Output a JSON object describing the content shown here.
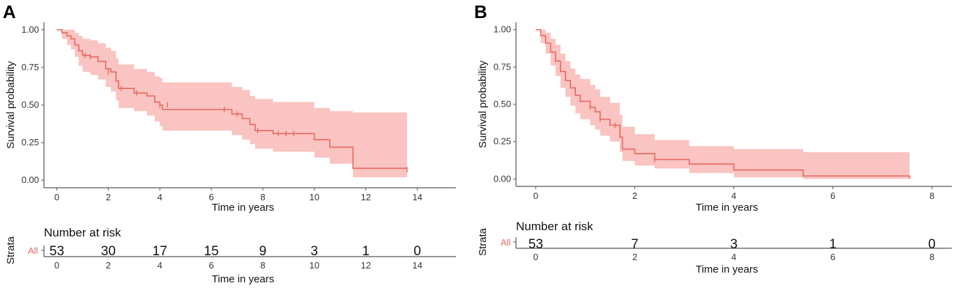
{
  "colors": {
    "curve": "#e8665f",
    "band": "#f9c4c1",
    "axis": "#555555",
    "text": "#111111"
  },
  "chart_data": [
    {
      "panel": "A",
      "type": "line",
      "title": "",
      "xlabel": "Time in years",
      "ylabel": "Survival probability",
      "xlim": [
        -0.5,
        15.5
      ],
      "ylim": [
        -0.05,
        1.05
      ],
      "xticks": [
        0,
        2,
        4,
        6,
        8,
        10,
        12,
        14
      ],
      "yticks": [
        0,
        0.25,
        0.5,
        0.75,
        1.0
      ],
      "ytick_labels": [
        "0.00",
        "0.25",
        "0.50",
        "0.75",
        "1.00"
      ],
      "grid": false,
      "series": [
        {
          "name": "All",
          "steps": [
            [
              0,
              1.0
            ],
            [
              0.2,
              0.98
            ],
            [
              0.4,
              0.96
            ],
            [
              0.55,
              0.94
            ],
            [
              0.7,
              0.9
            ],
            [
              0.85,
              0.86
            ],
            [
              1.0,
              0.83
            ],
            [
              1.3,
              0.82
            ],
            [
              1.6,
              0.79
            ],
            [
              1.9,
              0.74
            ],
            [
              2.1,
              0.72
            ],
            [
              2.3,
              0.66
            ],
            [
              2.4,
              0.61
            ],
            [
              3.0,
              0.58
            ],
            [
              3.5,
              0.56
            ],
            [
              3.8,
              0.52
            ],
            [
              4.0,
              0.5
            ],
            [
              4.1,
              0.47
            ],
            [
              6.8,
              0.44
            ],
            [
              7.2,
              0.41
            ],
            [
              7.5,
              0.37
            ],
            [
              7.7,
              0.33
            ],
            [
              8.4,
              0.31
            ],
            [
              10.0,
              0.27
            ],
            [
              10.6,
              0.22
            ],
            [
              11.5,
              0.08
            ],
            [
              13.6,
              0.07
            ]
          ],
          "upper": [
            [
              0,
              1.0
            ],
            [
              0.2,
              1.0
            ],
            [
              0.4,
              1.0
            ],
            [
              0.55,
              1.0
            ],
            [
              0.7,
              0.98
            ],
            [
              0.85,
              0.96
            ],
            [
              1.0,
              0.94
            ],
            [
              1.3,
              0.93
            ],
            [
              1.6,
              0.91
            ],
            [
              1.9,
              0.88
            ],
            [
              2.1,
              0.86
            ],
            [
              2.3,
              0.81
            ],
            [
              2.4,
              0.77
            ],
            [
              3.0,
              0.74
            ],
            [
              3.5,
              0.72
            ],
            [
              3.8,
              0.69
            ],
            [
              4.0,
              0.68
            ],
            [
              4.1,
              0.65
            ],
            [
              6.8,
              0.62
            ],
            [
              7.2,
              0.6
            ],
            [
              7.5,
              0.56
            ],
            [
              7.7,
              0.54
            ],
            [
              8.4,
              0.52
            ],
            [
              10.0,
              0.48
            ],
            [
              10.6,
              0.46
            ],
            [
              11.5,
              0.45
            ],
            [
              13.6,
              0.45
            ]
          ],
          "lower": [
            [
              0,
              1.0
            ],
            [
              0.2,
              0.94
            ],
            [
              0.4,
              0.9
            ],
            [
              0.55,
              0.87
            ],
            [
              0.7,
              0.82
            ],
            [
              0.85,
              0.76
            ],
            [
              1.0,
              0.72
            ],
            [
              1.3,
              0.7
            ],
            [
              1.6,
              0.67
            ],
            [
              1.9,
              0.62
            ],
            [
              2.1,
              0.59
            ],
            [
              2.3,
              0.53
            ],
            [
              2.4,
              0.48
            ],
            [
              3.0,
              0.46
            ],
            [
              3.5,
              0.43
            ],
            [
              3.8,
              0.39
            ],
            [
              4.0,
              0.36
            ],
            [
              4.1,
              0.33
            ],
            [
              6.8,
              0.3
            ],
            [
              7.2,
              0.27
            ],
            [
              7.5,
              0.24
            ],
            [
              7.7,
              0.21
            ],
            [
              8.4,
              0.19
            ],
            [
              10.0,
              0.15
            ],
            [
              10.6,
              0.11
            ],
            [
              11.5,
              0.02
            ],
            [
              13.6,
              0.02
            ]
          ],
          "censored": [
            [
              1.1,
              0.83
            ],
            [
              1.3,
              0.82
            ],
            [
              2.0,
              0.72
            ],
            [
              2.5,
              0.61
            ],
            [
              3.1,
              0.58
            ],
            [
              4.0,
              0.5
            ],
            [
              4.3,
              0.5
            ],
            [
              6.5,
              0.47
            ],
            [
              7.0,
              0.44
            ],
            [
              7.8,
              0.33
            ],
            [
              8.6,
              0.31
            ],
            [
              8.9,
              0.31
            ],
            [
              9.2,
              0.31
            ],
            [
              13.6,
              0.07
            ]
          ]
        }
      ],
      "risk_table": {
        "title": "Number at risk",
        "strata_axis_label": "Strata",
        "strata": "All",
        "times": [
          0,
          2,
          4,
          6,
          8,
          10,
          12,
          14
        ],
        "values": [
          "53",
          "30",
          "17",
          "15",
          "9",
          "3",
          "1",
          "0"
        ],
        "xlabel": "Time in years",
        "tick_labels": [
          "0",
          "2",
          "4",
          "6",
          "8",
          "10",
          "12",
          "14"
        ]
      }
    },
    {
      "panel": "B",
      "type": "line",
      "title": "",
      "xlabel": "Time in years",
      "ylabel": "Survival probability",
      "xlim": [
        -0.4,
        8.4
      ],
      "ylim": [
        -0.05,
        1.05
      ],
      "xticks": [
        0,
        2,
        4,
        6,
        8
      ],
      "yticks": [
        0,
        0.25,
        0.5,
        0.75,
        1.0
      ],
      "ytick_labels": [
        "0.00",
        "0.25",
        "0.50",
        "0.75",
        "1.00"
      ],
      "grid": false,
      "series": [
        {
          "name": "All",
          "steps": [
            [
              0,
              1.0
            ],
            [
              0.1,
              0.96
            ],
            [
              0.2,
              0.91
            ],
            [
              0.3,
              0.85
            ],
            [
              0.4,
              0.79
            ],
            [
              0.5,
              0.72
            ],
            [
              0.6,
              0.66
            ],
            [
              0.7,
              0.61
            ],
            [
              0.8,
              0.56
            ],
            [
              0.9,
              0.52
            ],
            [
              1.1,
              0.48
            ],
            [
              1.2,
              0.45
            ],
            [
              1.3,
              0.4
            ],
            [
              1.5,
              0.36
            ],
            [
              1.7,
              0.28
            ],
            [
              1.75,
              0.2
            ],
            [
              2.0,
              0.17
            ],
            [
              2.4,
              0.13
            ],
            [
              3.1,
              0.1
            ],
            [
              4.0,
              0.06
            ],
            [
              5.4,
              0.02
            ],
            [
              7.5,
              0.02
            ],
            [
              7.55,
              0.0
            ]
          ],
          "upper": [
            [
              0,
              1.0
            ],
            [
              0.1,
              1.0
            ],
            [
              0.2,
              0.98
            ],
            [
              0.3,
              0.94
            ],
            [
              0.4,
              0.9
            ],
            [
              0.5,
              0.84
            ],
            [
              0.6,
              0.79
            ],
            [
              0.7,
              0.74
            ],
            [
              0.8,
              0.7
            ],
            [
              0.9,
              0.67
            ],
            [
              1.1,
              0.63
            ],
            [
              1.2,
              0.6
            ],
            [
              1.3,
              0.55
            ],
            [
              1.5,
              0.51
            ],
            [
              1.7,
              0.43
            ],
            [
              1.75,
              0.35
            ],
            [
              2.0,
              0.3
            ],
            [
              2.4,
              0.26
            ],
            [
              3.1,
              0.22
            ],
            [
              4.0,
              0.2
            ],
            [
              5.4,
              0.18
            ],
            [
              7.5,
              0.18
            ],
            [
              7.55,
              0.18
            ]
          ],
          "lower": [
            [
              0,
              1.0
            ],
            [
              0.1,
              0.91
            ],
            [
              0.2,
              0.84
            ],
            [
              0.3,
              0.76
            ],
            [
              0.4,
              0.69
            ],
            [
              0.5,
              0.61
            ],
            [
              0.6,
              0.55
            ],
            [
              0.7,
              0.49
            ],
            [
              0.8,
              0.44
            ],
            [
              0.9,
              0.4
            ],
            [
              1.1,
              0.36
            ],
            [
              1.2,
              0.33
            ],
            [
              1.3,
              0.29
            ],
            [
              1.5,
              0.25
            ],
            [
              1.7,
              0.18
            ],
            [
              1.75,
              0.12
            ],
            [
              2.0,
              0.09
            ],
            [
              2.4,
              0.07
            ],
            [
              3.1,
              0.04
            ],
            [
              4.0,
              0.01
            ],
            [
              5.4,
              0.0
            ],
            [
              7.5,
              0.0
            ],
            [
              7.55,
              0.0
            ]
          ],
          "censored": [
            [
              1.1,
              0.48
            ],
            [
              1.3,
              0.4
            ],
            [
              1.6,
              0.36
            ],
            [
              2.4,
              0.13
            ]
          ]
        }
      ],
      "risk_table": {
        "title": "Number at risk",
        "strata_axis_label": "Strata",
        "strata": "All",
        "times": [
          0,
          2,
          4,
          6,
          8
        ],
        "values": [
          "53",
          "7",
          "3",
          "1",
          "0"
        ],
        "xlabel": "Time in years",
        "tick_labels": [
          "0",
          "2",
          "4",
          "6",
          "8"
        ]
      }
    }
  ]
}
